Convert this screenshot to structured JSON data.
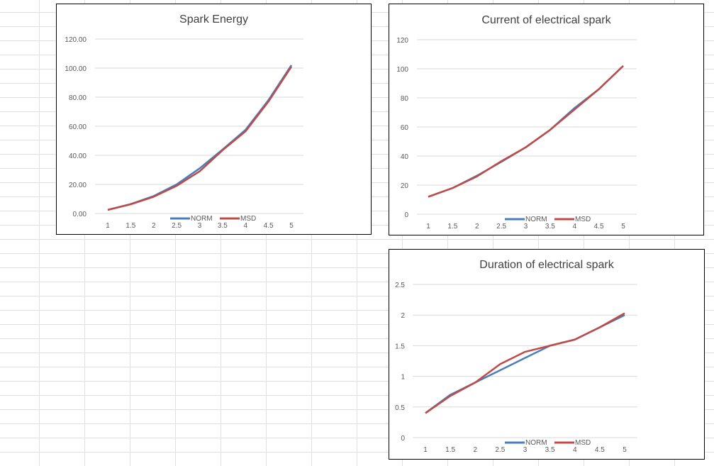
{
  "colors": {
    "norm": "#4a7ebb",
    "msd": "#be4b48",
    "grid": "#d9d9d9",
    "text": "#595959"
  },
  "chart_data": [
    {
      "type": "line",
      "title": "Spark Energy",
      "categories": [
        "1",
        "1.5",
        "2",
        "2.5",
        "3",
        "3.5",
        "4",
        "4.5",
        "5"
      ],
      "yticks": [
        "0.00",
        "20.00",
        "40.00",
        "60.00",
        "80.00",
        "100.00",
        "120.00"
      ],
      "ylim": [
        0,
        120
      ],
      "grid": true,
      "legend": "bottom",
      "series": [
        {
          "name": "NORM",
          "values": [
            2.5,
            6.5,
            12,
            20,
            31,
            44,
            57.5,
            78,
            102
          ]
        },
        {
          "name": "MSD",
          "values": [
            2.5,
            6.3,
            11.5,
            19,
            29,
            43.5,
            56.5,
            77,
            101
          ]
        }
      ]
    },
    {
      "type": "line",
      "title": "Current of electrical spark",
      "categories": [
        "1",
        "1.5",
        "2",
        "2.5",
        "3",
        "3.5",
        "4",
        "4.5",
        "5"
      ],
      "yticks": [
        "0",
        "20",
        "40",
        "60",
        "80",
        "100",
        "120"
      ],
      "ylim": [
        0,
        120
      ],
      "grid": true,
      "legend": "bottom",
      "series": [
        {
          "name": "NORM",
          "values": [
            12,
            18,
            26.5,
            36,
            46,
            58,
            73,
            86,
            102
          ]
        },
        {
          "name": "MSD",
          "values": [
            12,
            18,
            26,
            36.5,
            46,
            58,
            72,
            86,
            102
          ]
        }
      ]
    },
    {
      "type": "line",
      "title": "Duration of electrical spark",
      "categories": [
        "1",
        "1.5",
        "2",
        "2.5",
        "3",
        "3.5",
        "4",
        "4.5",
        "5"
      ],
      "yticks": [
        "0",
        "0.5",
        "1",
        "1.5",
        "2",
        "2.5"
      ],
      "ylim": [
        0,
        2.5
      ],
      "grid": true,
      "legend": "bottom",
      "series": [
        {
          "name": "NORM",
          "values": [
            0.4,
            0.7,
            0.9,
            1.1,
            1.3,
            1.5,
            1.6,
            1.8,
            2.0
          ]
        },
        {
          "name": "MSD",
          "values": [
            0.4,
            0.68,
            0.9,
            1.2,
            1.4,
            1.5,
            1.6,
            1.8,
            2.03
          ]
        }
      ]
    }
  ]
}
